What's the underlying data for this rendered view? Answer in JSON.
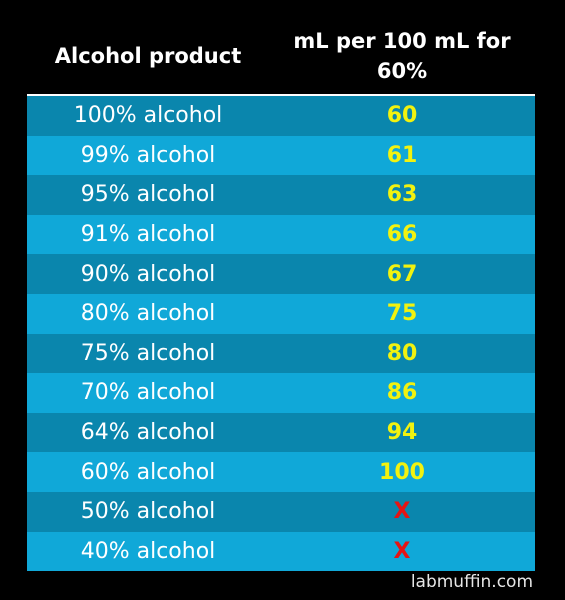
{
  "table": {
    "header_product": "Alcohol product",
    "header_amount": "mL per 100 mL for 60%",
    "rows": [
      {
        "product": "100% alcohol",
        "amount": "60"
      },
      {
        "product": "99% alcohol",
        "amount": "61"
      },
      {
        "product": "95% alcohol",
        "amount": "63"
      },
      {
        "product": "91% alcohol",
        "amount": "66"
      },
      {
        "product": "90% alcohol",
        "amount": "67"
      },
      {
        "product": "80% alcohol",
        "amount": "75"
      },
      {
        "product": "75% alcohol",
        "amount": "80"
      },
      {
        "product": "70% alcohol",
        "amount": "86"
      },
      {
        "product": "64% alcohol",
        "amount": "94"
      },
      {
        "product": "60% alcohol",
        "amount": "100"
      },
      {
        "product": "50% alcohol",
        "amount": "X"
      },
      {
        "product": "40% alcohol",
        "amount": "X"
      }
    ]
  },
  "footer": {
    "source": "labmuffin.com"
  },
  "colors": {
    "background": "#000000",
    "row_dark": "#0a86ad",
    "row_light": "#10a8d8",
    "value_yellow": "#f2f20f",
    "value_x_red": "#e51414"
  }
}
